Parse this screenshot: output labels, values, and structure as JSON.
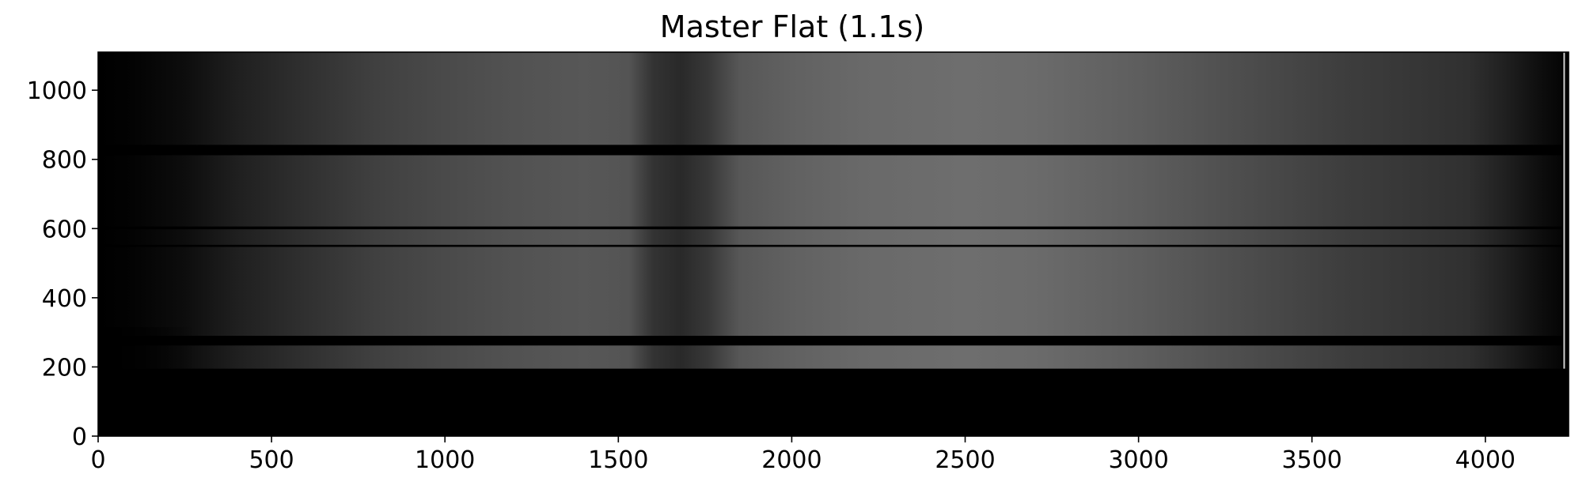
{
  "chart_data": {
    "type": "heatmap",
    "title": "Master Flat (1.1s)",
    "xlabel": "",
    "ylabel": "",
    "colormap": "gray",
    "xlim": [
      0,
      4240
    ],
    "ylim": [
      0,
      1110
    ],
    "x_ticks": [
      0,
      500,
      1000,
      1500,
      2000,
      2500,
      3000,
      3500,
      4000
    ],
    "x_tick_labels": [
      "0",
      "500",
      "1000",
      "1500",
      "2000",
      "2500",
      "3000",
      "3500",
      "4000"
    ],
    "y_ticks": [
      0,
      200,
      400,
      600,
      800,
      1000
    ],
    "y_tick_labels": [
      "0",
      "200",
      "400",
      "600",
      "800",
      "1000"
    ],
    "grid": false,
    "illuminated_region": {
      "y_range": [
        195,
        1110
      ],
      "x_range": [
        0,
        4220
      ]
    },
    "left_rise_start_x": 280,
    "horizontal_profile": [
      {
        "x": 0,
        "level": 0.0
      },
      {
        "x": 100,
        "level": 0.01
      },
      {
        "x": 250,
        "level": 0.05
      },
      {
        "x": 400,
        "level": 0.12
      },
      {
        "x": 600,
        "level": 0.19
      },
      {
        "x": 800,
        "level": 0.25
      },
      {
        "x": 1000,
        "level": 0.29
      },
      {
        "x": 1200,
        "level": 0.32
      },
      {
        "x": 1400,
        "level": 0.34
      },
      {
        "x": 1530,
        "level": 0.33
      },
      {
        "x": 1600,
        "level": 0.2
      },
      {
        "x": 1680,
        "level": 0.16
      },
      {
        "x": 1760,
        "level": 0.22
      },
      {
        "x": 1850,
        "level": 0.34
      },
      {
        "x": 2000,
        "level": 0.38
      },
      {
        "x": 2200,
        "level": 0.41
      },
      {
        "x": 2500,
        "level": 0.43
      },
      {
        "x": 2700,
        "level": 0.42
      },
      {
        "x": 3000,
        "level": 0.37
      },
      {
        "x": 3300,
        "level": 0.3
      },
      {
        "x": 3600,
        "level": 0.24
      },
      {
        "x": 3800,
        "level": 0.21
      },
      {
        "x": 3950,
        "level": 0.19
      },
      {
        "x": 4050,
        "level": 0.13
      },
      {
        "x": 4150,
        "level": 0.06
      },
      {
        "x": 4220,
        "level": 0.02
      }
    ],
    "dark_bands": [
      {
        "y0": 812,
        "y1": 842
      },
      {
        "y0": 598,
        "y1": 606
      },
      {
        "y0": 547,
        "y1": 553
      },
      {
        "y0": 262,
        "y1": 290
      }
    ],
    "bright_column_x": 4225
  }
}
